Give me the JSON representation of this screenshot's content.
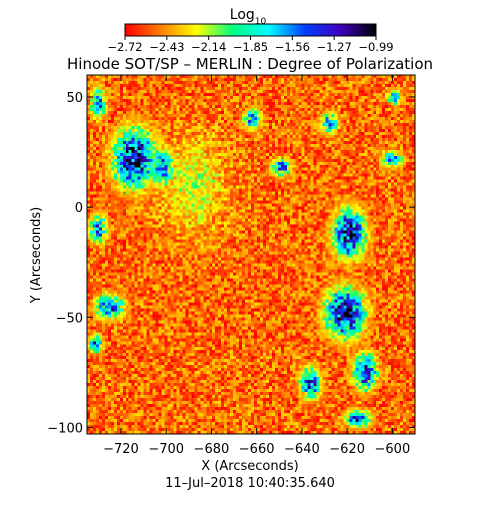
{
  "chart_data": {
    "type": "heatmap",
    "title": "Hinode SOT/SP – MERLIN : Degree of Polarization",
    "colorbar": {
      "label_main": "Log",
      "label_sub": "10",
      "ticks": [
        "−2.72",
        "−2.43",
        "−2.14",
        "−1.85",
        "−1.56",
        "−1.27",
        "−0.99"
      ],
      "range": [
        -2.72,
        -0.99
      ],
      "colors": [
        "#ff0000",
        "#ff8000",
        "#ffff00",
        "#00ff80",
        "#00ffff",
        "#0040ff",
        "#4000c0",
        "#000000"
      ]
    },
    "x_axis": {
      "label": "X (Arcseconds)",
      "range": [
        -735,
        -590
      ],
      "ticks": [
        -720,
        -700,
        -680,
        -660,
        -640,
        -620,
        -600
      ],
      "tick_labels": [
        "−720",
        "−700",
        "−680",
        "−660",
        "−640",
        "−620",
        "−600"
      ]
    },
    "y_axis": {
      "label": "Y (Arcseconds)",
      "range": [
        -103,
        60
      ],
      "ticks": [
        50,
        0,
        -50,
        -100
      ],
      "tick_labels": [
        "50",
        "0",
        "−50",
        "−100"
      ]
    },
    "clusters": [
      {
        "x": -714,
        "y": 22,
        "rx": 12,
        "ry": 17,
        "value": -1.05
      },
      {
        "x": -702,
        "y": 18,
        "rx": 7,
        "ry": 10,
        "value": -1.3
      },
      {
        "x": -730,
        "y": 47,
        "rx": 4,
        "ry": 9,
        "value": -1.4
      },
      {
        "x": -730,
        "y": -10,
        "rx": 5,
        "ry": 8,
        "value": -1.4
      },
      {
        "x": -725,
        "y": -45,
        "rx": 8,
        "ry": 7,
        "value": -1.3
      },
      {
        "x": -731,
        "y": -62,
        "rx": 4,
        "ry": 5,
        "value": -1.4
      },
      {
        "x": -662,
        "y": 40,
        "rx": 5,
        "ry": 6,
        "value": -1.5
      },
      {
        "x": -649,
        "y": 18,
        "rx": 6,
        "ry": 5,
        "value": -1.4
      },
      {
        "x": -619,
        "y": -12,
        "rx": 9,
        "ry": 14,
        "value": -1.05
      },
      {
        "x": -621,
        "y": -48,
        "rx": 11,
        "ry": 14,
        "value": -1.0
      },
      {
        "x": -612,
        "y": -75,
        "rx": 7,
        "ry": 10,
        "value": -1.15
      },
      {
        "x": -615,
        "y": -96,
        "rx": 7,
        "ry": 5,
        "value": -1.3
      },
      {
        "x": -636,
        "y": -80,
        "rx": 6,
        "ry": 9,
        "value": -1.3
      },
      {
        "x": -628,
        "y": 38,
        "rx": 5,
        "ry": 6,
        "value": -1.5
      },
      {
        "x": -600,
        "y": 22,
        "rx": 6,
        "ry": 5,
        "value": -1.55
      },
      {
        "x": -599,
        "y": 50,
        "rx": 4,
        "ry": 4,
        "value": -1.5
      }
    ]
  },
  "footer": {
    "timestamp": "11–Jul–2018 10:40:35.640"
  }
}
